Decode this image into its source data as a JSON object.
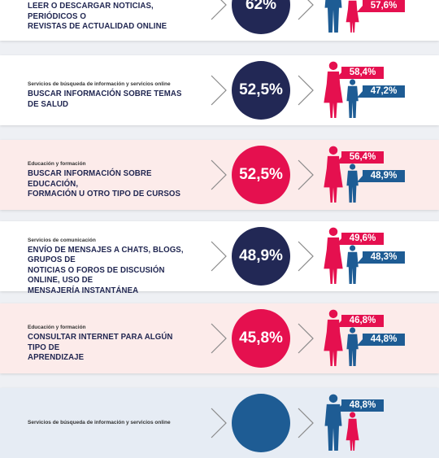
{
  "colors": {
    "navy": "#222855",
    "red": "#e5104f",
    "blue": "#1e5c94",
    "text": "#1f2550"
  },
  "rows": [
    {
      "category": "",
      "title_lines": [
        "LEER O DESCARGAR NOTICIAS, PERIÓDICOS O",
        "REVISTAS DE ACTUALIDAD ONLINE"
      ],
      "total": "62%",
      "circle": "navy",
      "top": {
        "gender": "male",
        "value": ""
      },
      "bottom": {
        "gender": "female",
        "value": "57,6%"
      }
    },
    {
      "category": "Servicios de búsqueda de información y servicios online",
      "title_lines": [
        "BUSCAR INFORMACIÓN SOBRE TEMAS DE SALUD"
      ],
      "total": "52,5%",
      "circle": "navy",
      "top": {
        "gender": "female",
        "value": "58,4%"
      },
      "bottom": {
        "gender": "male",
        "value": "47,2%"
      }
    },
    {
      "category": "Educación y formación",
      "title_lines": [
        "BUSCAR INFORMACIÓN SOBRE EDUCACIÓN,",
        "FORMACIÓN U OTRO TIPO DE CURSOS"
      ],
      "total": "52,5%",
      "circle": "red",
      "top": {
        "gender": "female",
        "value": "56,4%"
      },
      "bottom": {
        "gender": "male",
        "value": "48,9%"
      }
    },
    {
      "category": "Servicios de comunicación",
      "title_lines": [
        "ENVÍO DE MENSAJES A CHATS, BLOGS, GRUPOS DE",
        "NOTICIAS O FOROS DE DISCUSIÓN ONLINE, USO DE",
        "MENSAJERÍA INSTANTÁNEA"
      ],
      "total": "48,9%",
      "circle": "navy",
      "top": {
        "gender": "female",
        "value": "49,6%"
      },
      "bottom": {
        "gender": "male",
        "value": "48,3%"
      }
    },
    {
      "category": "Educación y formación",
      "title_lines": [
        "CONSULTAR INTERNET PARA ALGÚN TIPO DE",
        "APRENDIZAJE"
      ],
      "total": "45,8%",
      "circle": "red",
      "top": {
        "gender": "female",
        "value": "46,8%"
      },
      "bottom": {
        "gender": "male",
        "value": "44,8%"
      }
    },
    {
      "category": "Servicios de búsqueda de información y servicios online",
      "title_lines": [],
      "total": "",
      "circle": "blue",
      "top": {
        "gender": "male",
        "value": "48,8%"
      },
      "bottom": {
        "gender": "female",
        "value": ""
      }
    }
  ]
}
